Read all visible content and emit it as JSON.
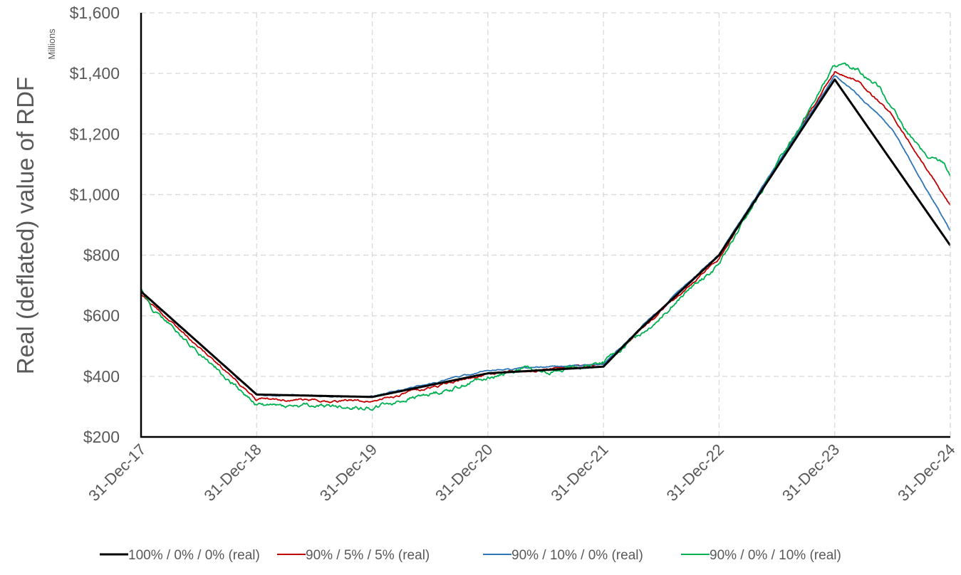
{
  "chart_data": {
    "type": "line",
    "ylabel": "Real (deflated) value of RDF",
    "y_units": "Millions",
    "ylim": [
      200,
      1600
    ],
    "y_ticks": [
      200,
      400,
      600,
      800,
      1000,
      1200,
      1400,
      1600
    ],
    "y_tick_labels": [
      "$200",
      "$400",
      "$600",
      "$800",
      "$1,000",
      "$1,200",
      "$1,400",
      "$1,600"
    ],
    "x_tick_labels": [
      "31-Dec-17",
      "31-Dec-18",
      "31-Dec-19",
      "31-Dec-20",
      "31-Dec-21",
      "31-Dec-22",
      "31-Dec-23",
      "31-Dec-24"
    ],
    "grid": true,
    "legend_position": "bottom",
    "series": [
      {
        "name": "100% / 0% / 0% (real)",
        "color": "#000000",
        "noise": 0,
        "points": [
          [
            0,
            680
          ],
          [
            1,
            340
          ],
          [
            2,
            332
          ],
          [
            3,
            410
          ],
          [
            4,
            432
          ],
          [
            4.3,
            550
          ],
          [
            5,
            800
          ],
          [
            6,
            1380
          ],
          [
            7,
            832
          ]
        ]
      },
      {
        "name": "90% / 5% / 5% (real)",
        "color": "#C00000",
        "noise": 5,
        "points": [
          [
            0,
            670
          ],
          [
            1,
            323
          ],
          [
            2,
            318
          ],
          [
            3,
            408
          ],
          [
            3.5,
            425
          ],
          [
            4,
            437
          ],
          [
            4.3,
            545
          ],
          [
            5,
            790
          ],
          [
            6,
            1405
          ],
          [
            6.2,
            1375
          ],
          [
            6.5,
            1260
          ],
          [
            6.8,
            1080
          ],
          [
            7,
            965
          ]
        ]
      },
      {
        "name": "90% / 10% / 0% (real)",
        "color": "#2E75B6",
        "noise": 3,
        "points": [
          [
            0,
            680
          ],
          [
            1,
            338
          ],
          [
            2,
            333
          ],
          [
            3,
            420
          ],
          [
            4,
            440
          ],
          [
            4.3,
            553
          ],
          [
            5,
            805
          ],
          [
            6,
            1392
          ],
          [
            6.2,
            1330
          ],
          [
            6.5,
            1215
          ],
          [
            7,
            880
          ]
        ]
      },
      {
        "name": "90% / 0% / 10% (real)",
        "color": "#00B050",
        "noise": 9,
        "points": [
          [
            0,
            690
          ],
          [
            0.1,
            620
          ],
          [
            1,
            305
          ],
          [
            2,
            297
          ],
          [
            2.7,
            360
          ],
          [
            3,
            400
          ],
          [
            3.3,
            425
          ],
          [
            3.6,
            418
          ],
          [
            4,
            445
          ],
          [
            4.3,
            535
          ],
          [
            5,
            770
          ],
          [
            6,
            1425
          ],
          [
            6.2,
            1415
          ],
          [
            6.4,
            1350
          ],
          [
            6.6,
            1220
          ],
          [
            6.8,
            1120
          ],
          [
            6.95,
            1105
          ],
          [
            7,
            1060
          ]
        ]
      }
    ]
  }
}
